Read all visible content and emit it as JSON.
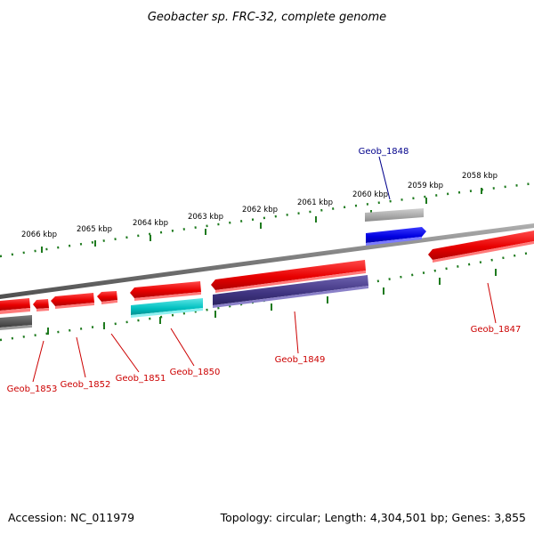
{
  "title": "Geobacter sp. FRC-32, complete genome",
  "footer": {
    "accession": "Accession: NC_011979",
    "summary": "Topology: circular; Length: 4,304,501 bp; Genes: 3,855"
  },
  "colors": {
    "backbone": "#7a7a7a",
    "scale_ticks": "#1e7a1e",
    "forward_gene": "#e80000",
    "reverse_gene": "#e80000",
    "rna_gene": "#00c8c8",
    "misc_feature": "#4b3f8c",
    "highlight_gene": "#0000e8",
    "pseudo_feature": "#a9a9a9",
    "label_red": "#cc0000",
    "label_blue": "#00008b"
  },
  "scale_labels": [
    "2066 kbp",
    "2065 kbp",
    "2064 kbp",
    "2063 kbp",
    "2062 kbp",
    "2061 kbp",
    "2060 kbp",
    "2059 kbp",
    "2058 kbp"
  ],
  "gene_labels": [
    {
      "name": "Geob_1848",
      "color": "blue"
    },
    {
      "name": "Geob_1847",
      "color": "red"
    },
    {
      "name": "Geob_1849",
      "color": "red"
    },
    {
      "name": "Geob_1850",
      "color": "red"
    },
    {
      "name": "Geob_1851",
      "color": "red"
    },
    {
      "name": "Geob_1852",
      "color": "red"
    },
    {
      "name": "Geob_1853",
      "color": "red"
    }
  ]
}
